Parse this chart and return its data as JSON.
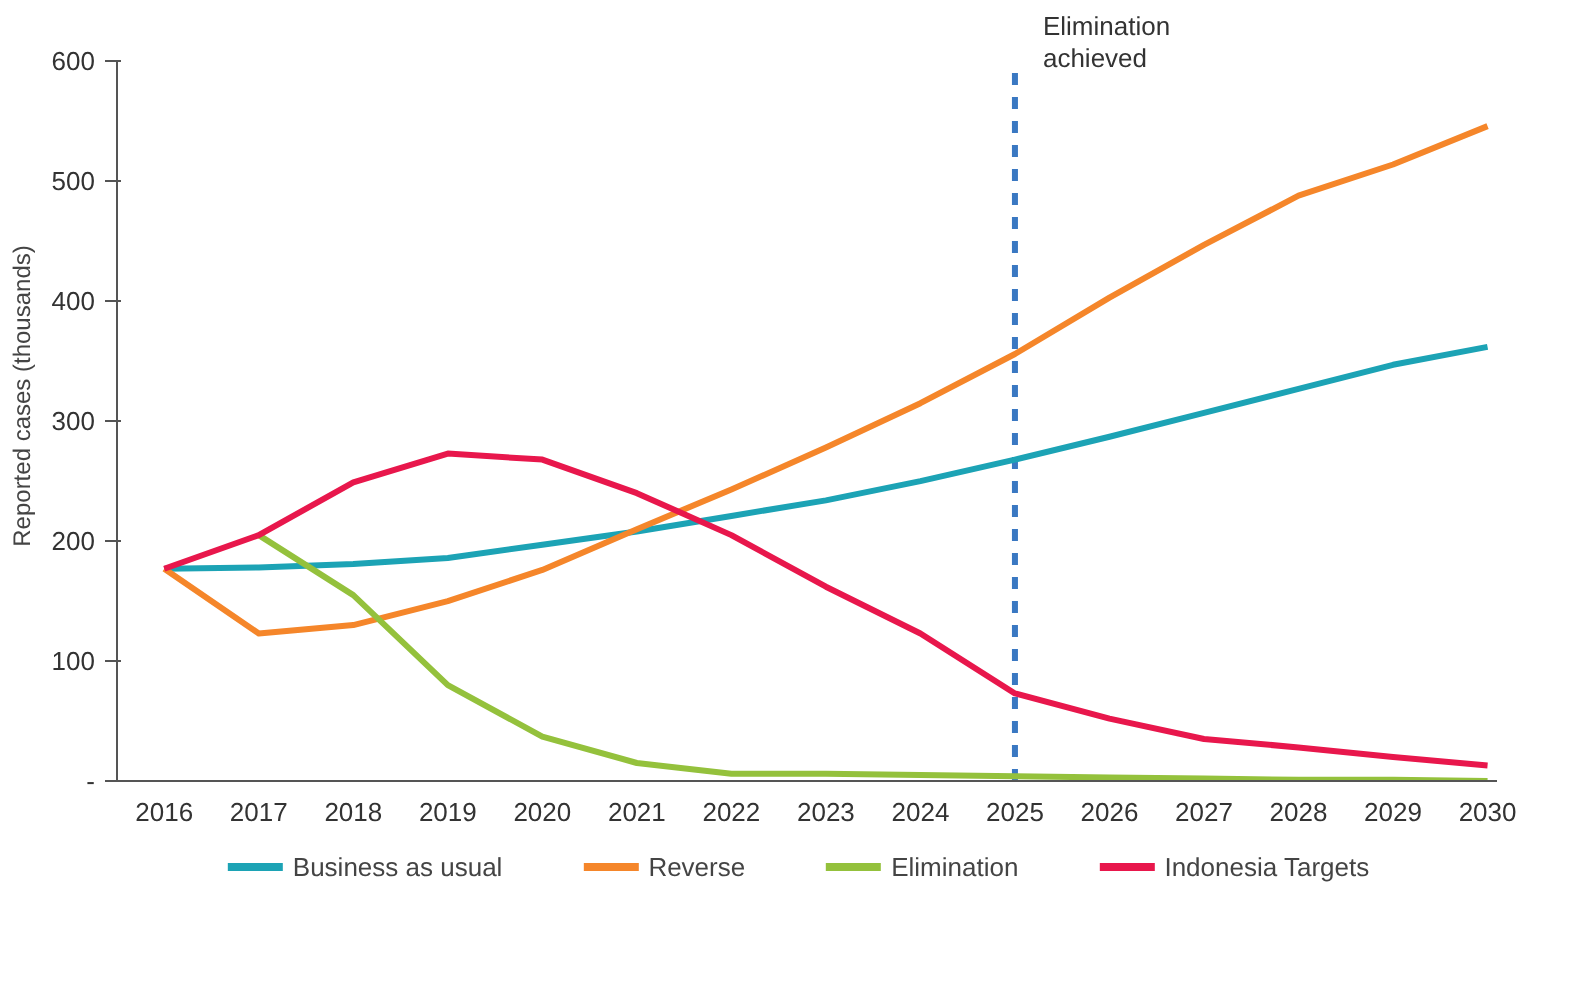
{
  "chart_data": {
    "type": "line",
    "ylabel": "Reported cases (thousands)",
    "categories": [
      "2016",
      "2017",
      "2018",
      "2019",
      "2020",
      "2021",
      "2022",
      "2023",
      "2024",
      "2025",
      "2026",
      "2027",
      "2028",
      "2029",
      "2030"
    ],
    "ylim": [
      0,
      600
    ],
    "yticks": [
      {
        "value": 0,
        "label": "-"
      },
      100,
      200,
      300,
      400,
      500,
      600
    ],
    "series": [
      {
        "name": "Business as usual",
        "color": "#1ca3b5",
        "values": [
          177,
          178,
          181,
          186,
          197,
          208,
          221,
          234,
          250,
          268,
          287,
          307,
          327,
          347,
          362
        ]
      },
      {
        "name": "Reverse",
        "color": "#f5862a",
        "values": [
          177,
          123,
          130,
          150,
          176,
          210,
          243,
          278,
          315,
          356,
          403,
          447,
          488,
          514,
          546
        ]
      },
      {
        "name": "Elimination",
        "color": "#94c13c",
        "values": [
          null,
          205,
          155,
          80,
          37,
          15,
          6,
          6,
          5,
          4,
          3,
          2,
          1,
          1,
          0
        ]
      },
      {
        "name": "Indonesia Targets",
        "color": "#e8174c",
        "values": [
          177,
          205,
          249,
          273,
          268,
          240,
          205,
          162,
          123,
          73,
          52,
          35,
          28,
          20,
          13
        ]
      }
    ],
    "ref_lines": [
      {
        "axis": "x",
        "value": "2025",
        "label": "Elimination achieved",
        "color": "#3a78c2",
        "line_style": "dashed"
      }
    ],
    "grid": false,
    "legend": "bottom",
    "marker": "none",
    "line_style": "solid"
  }
}
